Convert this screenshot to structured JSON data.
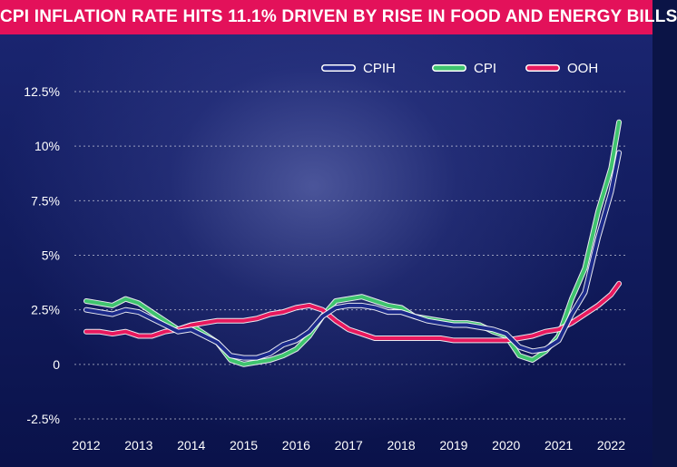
{
  "title": "CPI INFLATION RATE HITS 11.1% DRIVEN BY RISE IN FOOD AND ENERGY BILLS",
  "chart_data": {
    "type": "line",
    "title": "CPI INFLATION RATE HITS 11.1% DRIVEN BY RISE IN FOOD AND ENERGY BILLS",
    "xlabel": "",
    "ylabel": "",
    "xlim": [
      2012,
      2022.2
    ],
    "ylim": [
      -2.5,
      12.5
    ],
    "x_ticks": [
      "2012",
      "2013",
      "2014",
      "2015",
      "2016",
      "2017",
      "2018",
      "2019",
      "2020",
      "2021",
      "2022"
    ],
    "y_ticks": [
      "12.5%",
      "10%",
      "7.5%",
      "5%",
      "2.5%",
      "0",
      "-2.5%"
    ],
    "y_tick_values": [
      12.5,
      10,
      7.5,
      5,
      2.5,
      0,
      -2.5
    ],
    "grid": true,
    "legend_position": "top-right",
    "series": [
      {
        "name": "CPIH",
        "color": "#1c2a8a",
        "x": [
          2012.0,
          2012.25,
          2012.5,
          2012.75,
          2013.0,
          2013.25,
          2013.5,
          2013.75,
          2014.0,
          2014.25,
          2014.5,
          2014.75,
          2015.0,
          2015.25,
          2015.5,
          2015.75,
          2016.0,
          2016.25,
          2016.5,
          2016.75,
          2017.0,
          2017.25,
          2017.5,
          2017.75,
          2018.0,
          2018.25,
          2018.5,
          2018.75,
          2019.0,
          2019.25,
          2019.5,
          2019.75,
          2020.0,
          2020.25,
          2020.5,
          2020.75,
          2021.0,
          2021.25,
          2021.5,
          2021.75,
          2022.0,
          2022.15
        ],
        "y": [
          2.5,
          2.4,
          2.3,
          2.5,
          2.4,
          2.1,
          1.8,
          1.5,
          1.6,
          1.3,
          1.0,
          0.4,
          0.3,
          0.3,
          0.5,
          0.9,
          1.1,
          1.5,
          2.2,
          2.6,
          2.7,
          2.7,
          2.6,
          2.4,
          2.4,
          2.2,
          2.0,
          1.9,
          1.8,
          1.8,
          1.7,
          1.6,
          1.4,
          0.8,
          0.6,
          0.7,
          1.1,
          2.3,
          3.3,
          5.8,
          7.9,
          9.7
        ]
      },
      {
        "name": "CPI",
        "color": "#3fc46e",
        "x": [
          2012.0,
          2012.25,
          2012.5,
          2012.75,
          2013.0,
          2013.25,
          2013.5,
          2013.75,
          2014.0,
          2014.25,
          2014.5,
          2014.75,
          2015.0,
          2015.25,
          2015.5,
          2015.75,
          2016.0,
          2016.25,
          2016.5,
          2016.75,
          2017.0,
          2017.25,
          2017.5,
          2017.75,
          2018.0,
          2018.25,
          2018.5,
          2018.75,
          2019.0,
          2019.25,
          2019.5,
          2019.75,
          2020.0,
          2020.25,
          2020.5,
          2020.75,
          2021.0,
          2021.25,
          2021.5,
          2021.75,
          2022.0,
          2022.15
        ],
        "y": [
          2.9,
          2.8,
          2.7,
          3.0,
          2.8,
          2.4,
          2.0,
          1.6,
          1.8,
          1.4,
          1.0,
          0.2,
          0.0,
          0.1,
          0.2,
          0.4,
          0.7,
          1.3,
          2.2,
          2.9,
          3.0,
          3.1,
          2.9,
          2.7,
          2.6,
          2.2,
          2.1,
          2.0,
          1.9,
          1.9,
          1.8,
          1.5,
          1.3,
          0.4,
          0.2,
          0.6,
          1.3,
          3.0,
          4.4,
          7.0,
          9.0,
          11.1
        ]
      },
      {
        "name": "OOH",
        "color": "#e8195e",
        "x": [
          2012.0,
          2012.25,
          2012.5,
          2012.75,
          2013.0,
          2013.25,
          2013.5,
          2013.75,
          2014.0,
          2014.25,
          2014.5,
          2014.75,
          2015.0,
          2015.25,
          2015.5,
          2015.75,
          2016.0,
          2016.25,
          2016.5,
          2016.75,
          2017.0,
          2017.25,
          2017.5,
          2017.75,
          2018.0,
          2018.25,
          2018.5,
          2018.75,
          2019.0,
          2019.25,
          2019.5,
          2019.75,
          2020.0,
          2020.25,
          2020.5,
          2020.75,
          2021.0,
          2021.25,
          2021.5,
          2021.75,
          2022.0,
          2022.15
        ],
        "y": [
          1.5,
          1.5,
          1.4,
          1.5,
          1.3,
          1.3,
          1.5,
          1.6,
          1.8,
          1.9,
          2.0,
          2.0,
          2.0,
          2.1,
          2.3,
          2.4,
          2.6,
          2.7,
          2.5,
          2.0,
          1.6,
          1.4,
          1.2,
          1.2,
          1.2,
          1.2,
          1.2,
          1.2,
          1.1,
          1.1,
          1.1,
          1.1,
          1.1,
          1.2,
          1.3,
          1.5,
          1.6,
          1.9,
          2.3,
          2.7,
          3.2,
          3.7
        ]
      }
    ]
  }
}
